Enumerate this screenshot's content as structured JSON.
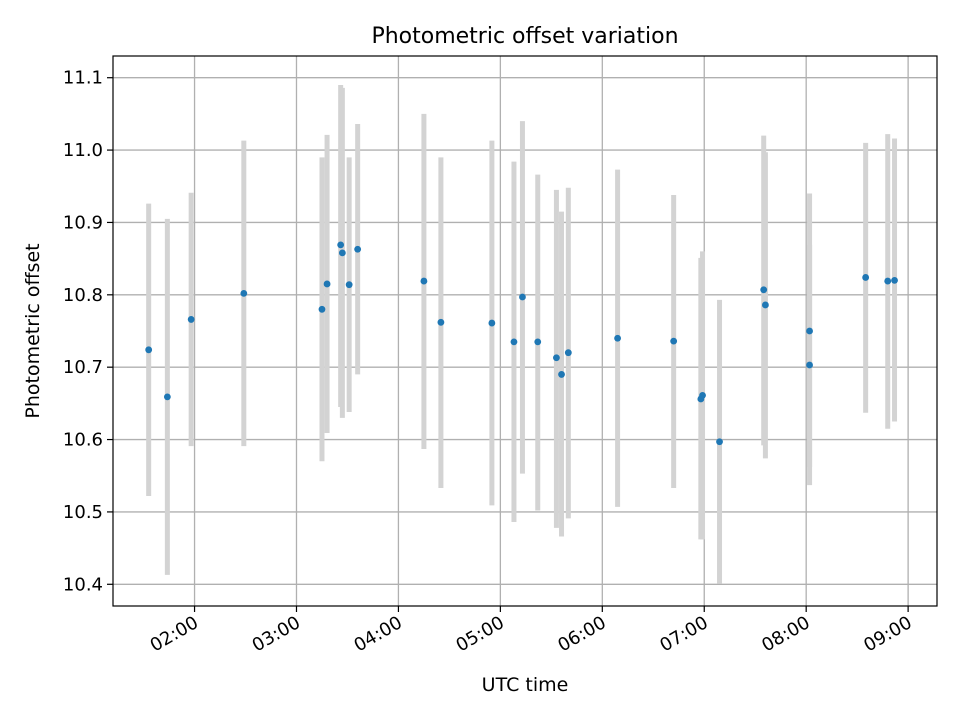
{
  "chart_data": {
    "type": "scatter",
    "title": "Photometric offset variation",
    "xlabel": "UTC time",
    "ylabel": "Photometric offset",
    "x_unit": "time of day (UTC)",
    "xlim": [
      "01:12",
      "09:17"
    ],
    "ylim": [
      10.37,
      11.13
    ],
    "x_ticks": [
      "02:00",
      "03:00",
      "04:00",
      "05:00",
      "06:00",
      "07:00",
      "08:00",
      "09:00"
    ],
    "y_ticks": [
      "10.4",
      "10.5",
      "10.6",
      "10.7",
      "10.8",
      "10.9",
      "11.0",
      "11.1"
    ],
    "grid": true,
    "colors": {
      "points": "#1f77b4",
      "error_bars": "#d3d3d3",
      "grid": "#b0b0b0"
    },
    "series": [
      {
        "marker": "point",
        "points": [
          {
            "x": "01:33",
            "y": 10.724,
            "ylow": 10.522,
            "yhigh": 10.926
          },
          {
            "x": "01:44",
            "y": 10.659,
            "ylow": 10.413,
            "yhigh": 10.905
          },
          {
            "x": "01:58",
            "y": 10.766,
            "ylow": 10.591,
            "yhigh": 10.941
          },
          {
            "x": "02:29",
            "y": 10.802,
            "ylow": 10.591,
            "yhigh": 11.013
          },
          {
            "x": "03:15",
            "y": 10.78,
            "ylow": 10.57,
            "yhigh": 10.99
          },
          {
            "x": "03:18",
            "y": 10.815,
            "ylow": 10.609,
            "yhigh": 11.021
          },
          {
            "x": "03:26",
            "y": 10.869,
            "ylow": 10.645,
            "yhigh": 11.09
          },
          {
            "x": "03:27",
            "y": 10.858,
            "ylow": 10.63,
            "yhigh": 11.086
          },
          {
            "x": "03:31",
            "y": 10.814,
            "ylow": 10.638,
            "yhigh": 10.99
          },
          {
            "x": "03:36",
            "y": 10.863,
            "ylow": 10.69,
            "yhigh": 11.036
          },
          {
            "x": "04:15",
            "y": 10.819,
            "ylow": 10.587,
            "yhigh": 11.05
          },
          {
            "x": "04:25",
            "y": 10.762,
            "ylow": 10.533,
            "yhigh": 10.99
          },
          {
            "x": "04:55",
            "y": 10.761,
            "ylow": 10.509,
            "yhigh": 11.013
          },
          {
            "x": "05:08",
            "y": 10.735,
            "ylow": 10.486,
            "yhigh": 10.984
          },
          {
            "x": "05:13",
            "y": 10.797,
            "ylow": 10.553,
            "yhigh": 11.04
          },
          {
            "x": "05:22",
            "y": 10.735,
            "ylow": 10.502,
            "yhigh": 10.966
          },
          {
            "x": "05:33",
            "y": 10.713,
            "ylow": 10.478,
            "yhigh": 10.945
          },
          {
            "x": "05:36",
            "y": 10.69,
            "ylow": 10.466,
            "yhigh": 10.915
          },
          {
            "x": "05:40",
            "y": 10.72,
            "ylow": 10.491,
            "yhigh": 10.948
          },
          {
            "x": "06:09",
            "y": 10.74,
            "ylow": 10.507,
            "yhigh": 10.973
          },
          {
            "x": "06:42",
            "y": 10.736,
            "ylow": 10.533,
            "yhigh": 10.938
          },
          {
            "x": "06:58",
            "y": 10.656,
            "ylow": 10.462,
            "yhigh": 10.851
          },
          {
            "x": "06:59",
            "y": 10.661,
            "ylow": 10.462,
            "yhigh": 10.86
          },
          {
            "x": "07:09",
            "y": 10.597,
            "ylow": 10.401,
            "yhigh": 10.793
          },
          {
            "x": "07:35",
            "y": 10.807,
            "ylow": 10.592,
            "yhigh": 11.02
          },
          {
            "x": "07:36",
            "y": 10.786,
            "ylow": 10.574,
            "yhigh": 10.997
          },
          {
            "x": "08:02",
            "y": 10.75,
            "ylow": 10.562,
            "yhigh": 10.94
          },
          {
            "x": "08:02",
            "y": 10.703,
            "ylow": 10.537,
            "yhigh": 10.869
          },
          {
            "x": "08:35",
            "y": 10.824,
            "ylow": 10.637,
            "yhigh": 11.01
          },
          {
            "x": "08:48",
            "y": 10.819,
            "ylow": 10.615,
            "yhigh": 11.022
          },
          {
            "x": "08:52",
            "y": 10.82,
            "ylow": 10.625,
            "yhigh": 11.016
          }
        ]
      }
    ]
  }
}
